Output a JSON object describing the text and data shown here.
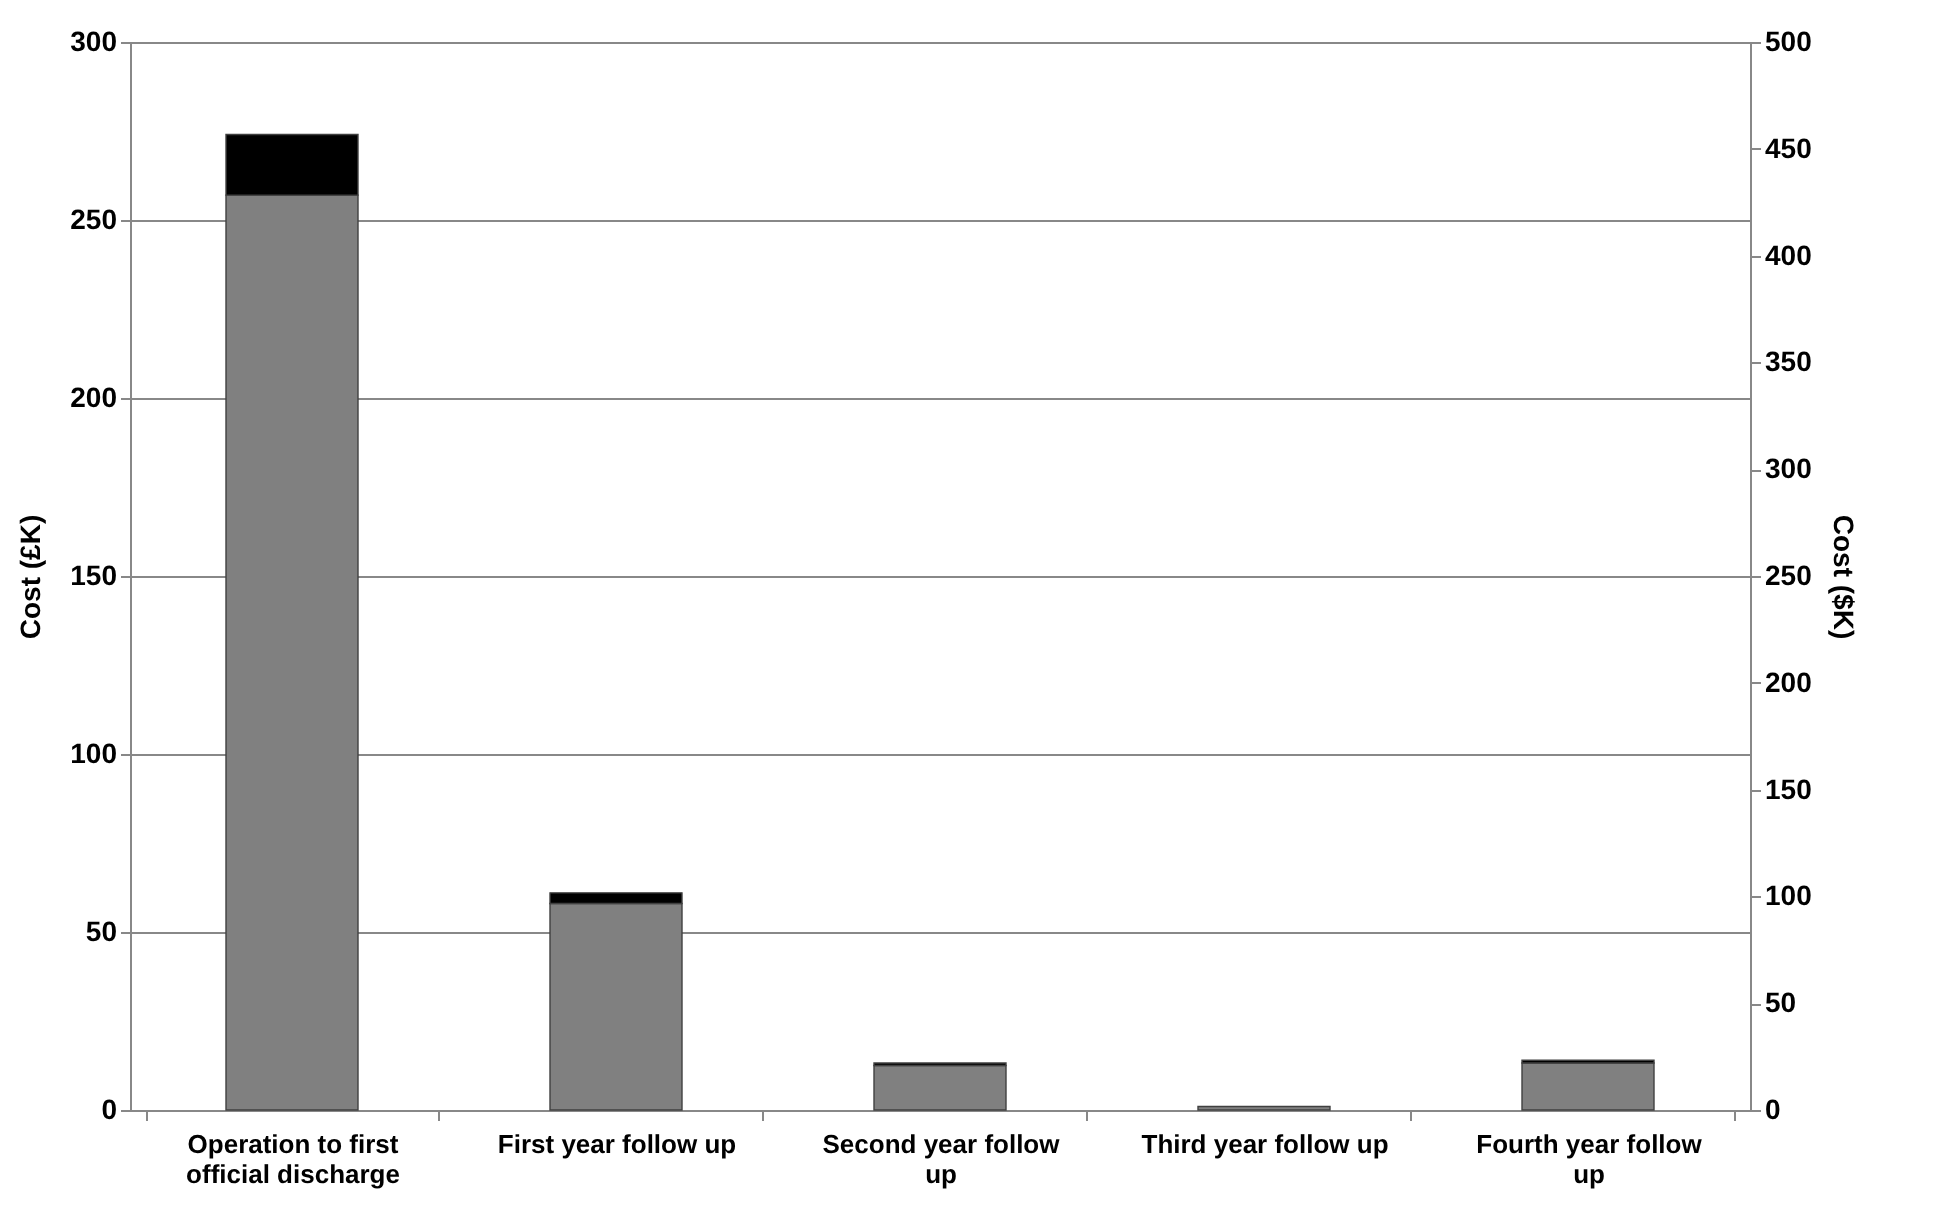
{
  "chart_data": {
    "type": "bar",
    "stacked": true,
    "ylabel": "Cost (£K)",
    "y2label": "Cost ($K)",
    "categories": [
      "Operation to first official discharge",
      "First year follow up",
      "Second year follow up",
      "Third year follow up",
      "Fourth year follow up"
    ],
    "series": [
      {
        "color": "#808080",
        "values": [
          257,
          58,
          12.5,
          1,
          13.2
        ]
      },
      {
        "color": "#000000",
        "values": [
          17,
          3,
          0.7,
          null,
          0.8
        ]
      }
    ],
    "ylim": [
      0,
      300
    ],
    "yticks": [
      0,
      50,
      100,
      150,
      200,
      250,
      300
    ],
    "y2lim": [
      0,
      500
    ],
    "y2ticks": [
      0,
      50,
      100,
      150,
      200,
      250,
      300,
      350,
      400,
      450,
      500
    ],
    "grid": "y",
    "legend": false
  }
}
